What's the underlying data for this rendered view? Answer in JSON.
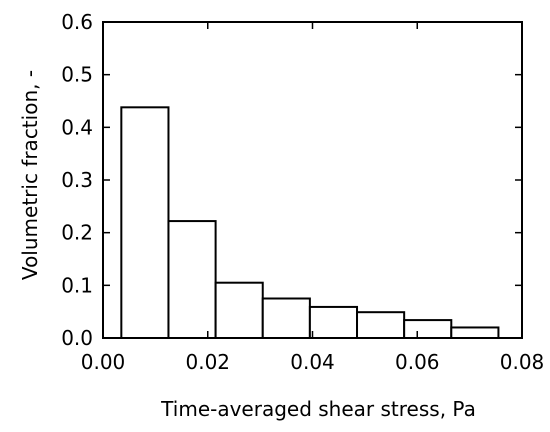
{
  "chart_data": {
    "type": "bar",
    "title": "",
    "xlabel": "Time-averaged shear stress, Pa",
    "ylabel": "Volumetric fraction, -",
    "xlim": [
      0.0,
      0.08
    ],
    "ylim": [
      0.0,
      0.6
    ],
    "xticks": [
      "0.00",
      "0.02",
      "0.04",
      "0.06",
      "0.08"
    ],
    "yticks": [
      "0.0",
      "0.1",
      "0.2",
      "0.3",
      "0.4",
      "0.5",
      "0.6"
    ],
    "grid": false,
    "bins": [
      {
        "x0": 0.0035,
        "x1": 0.0125,
        "value": 0.438
      },
      {
        "x0": 0.0125,
        "x1": 0.0215,
        "value": 0.222
      },
      {
        "x0": 0.0215,
        "x1": 0.0305,
        "value": 0.105
      },
      {
        "x0": 0.0305,
        "x1": 0.0395,
        "value": 0.075
      },
      {
        "x0": 0.0395,
        "x1": 0.0485,
        "value": 0.059
      },
      {
        "x0": 0.0485,
        "x1": 0.0575,
        "value": 0.049
      },
      {
        "x0": 0.0575,
        "x1": 0.0665,
        "value": 0.034
      },
      {
        "x0": 0.0665,
        "x1": 0.0755,
        "value": 0.02
      }
    ]
  }
}
